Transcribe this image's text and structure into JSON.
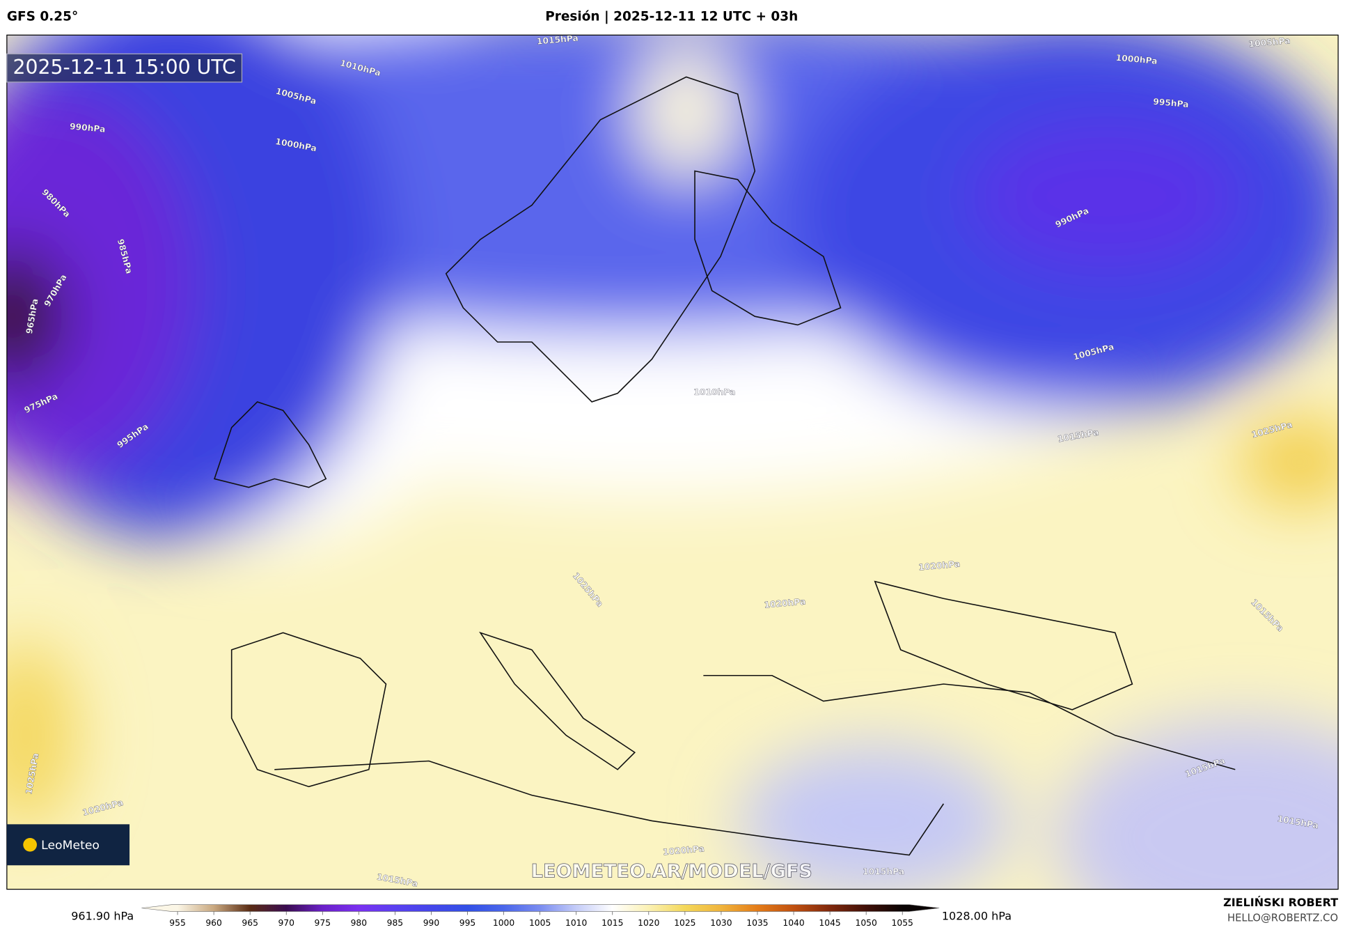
{
  "header": {
    "model": "GFS 0.25°",
    "title": "Presión | 2025-12-11 12 UTC + 03h"
  },
  "map": {
    "valid_time": "2025-12-11 15:00 UTC",
    "logo": "LeoMeteo",
    "watermark": "LEOMETEO.AR/MODEL/GFS",
    "isobar_labels": [
      "1015hPa",
      "1010hPa",
      "1005hPa",
      "1000hPa",
      "990hPa",
      "980hPa",
      "985hPa",
      "970hPa",
      "965hPa",
      "975hPa",
      "995hPa",
      "1000hPa",
      "995hPa",
      "990hPa",
      "1005hPa",
      "1010hPa",
      "1015hPa",
      "1025hPa",
      "1020hPa",
      "1020hPa",
      "1025hPa",
      "1015hPa",
      "1015hPa",
      "1015hPa",
      "1025hPa",
      "1020hPa",
      "1020hPa",
      "1015hPa",
      "1015hPa",
      "1005hPa"
    ]
  },
  "colorbar": {
    "min_label": "961.90 hPa",
    "max_label": "1028.00 hPa",
    "ticks": [
      955,
      960,
      965,
      970,
      975,
      980,
      985,
      990,
      995,
      1000,
      1005,
      1010,
      1015,
      1020,
      1025,
      1030,
      1035,
      1040,
      1045,
      1050,
      1055
    ],
    "colors": [
      "#fbf6e6",
      "#c9a880",
      "#5a2c14",
      "#3a0c50",
      "#6a20c8",
      "#7a30f0",
      "#5a40f0",
      "#4446ea",
      "#3250e6",
      "#4a66ea",
      "#7a8cf0",
      "#c4ccf8",
      "#ffffff",
      "#fbf1b4",
      "#f4d85a",
      "#f0b43c",
      "#e47c18",
      "#c05010",
      "#80280c",
      "#401008",
      "#0a0303"
    ]
  },
  "footer": {
    "author": "ZIELIŃSKI ROBERT",
    "contact": "HELLO@ROBERTZ.CO"
  }
}
